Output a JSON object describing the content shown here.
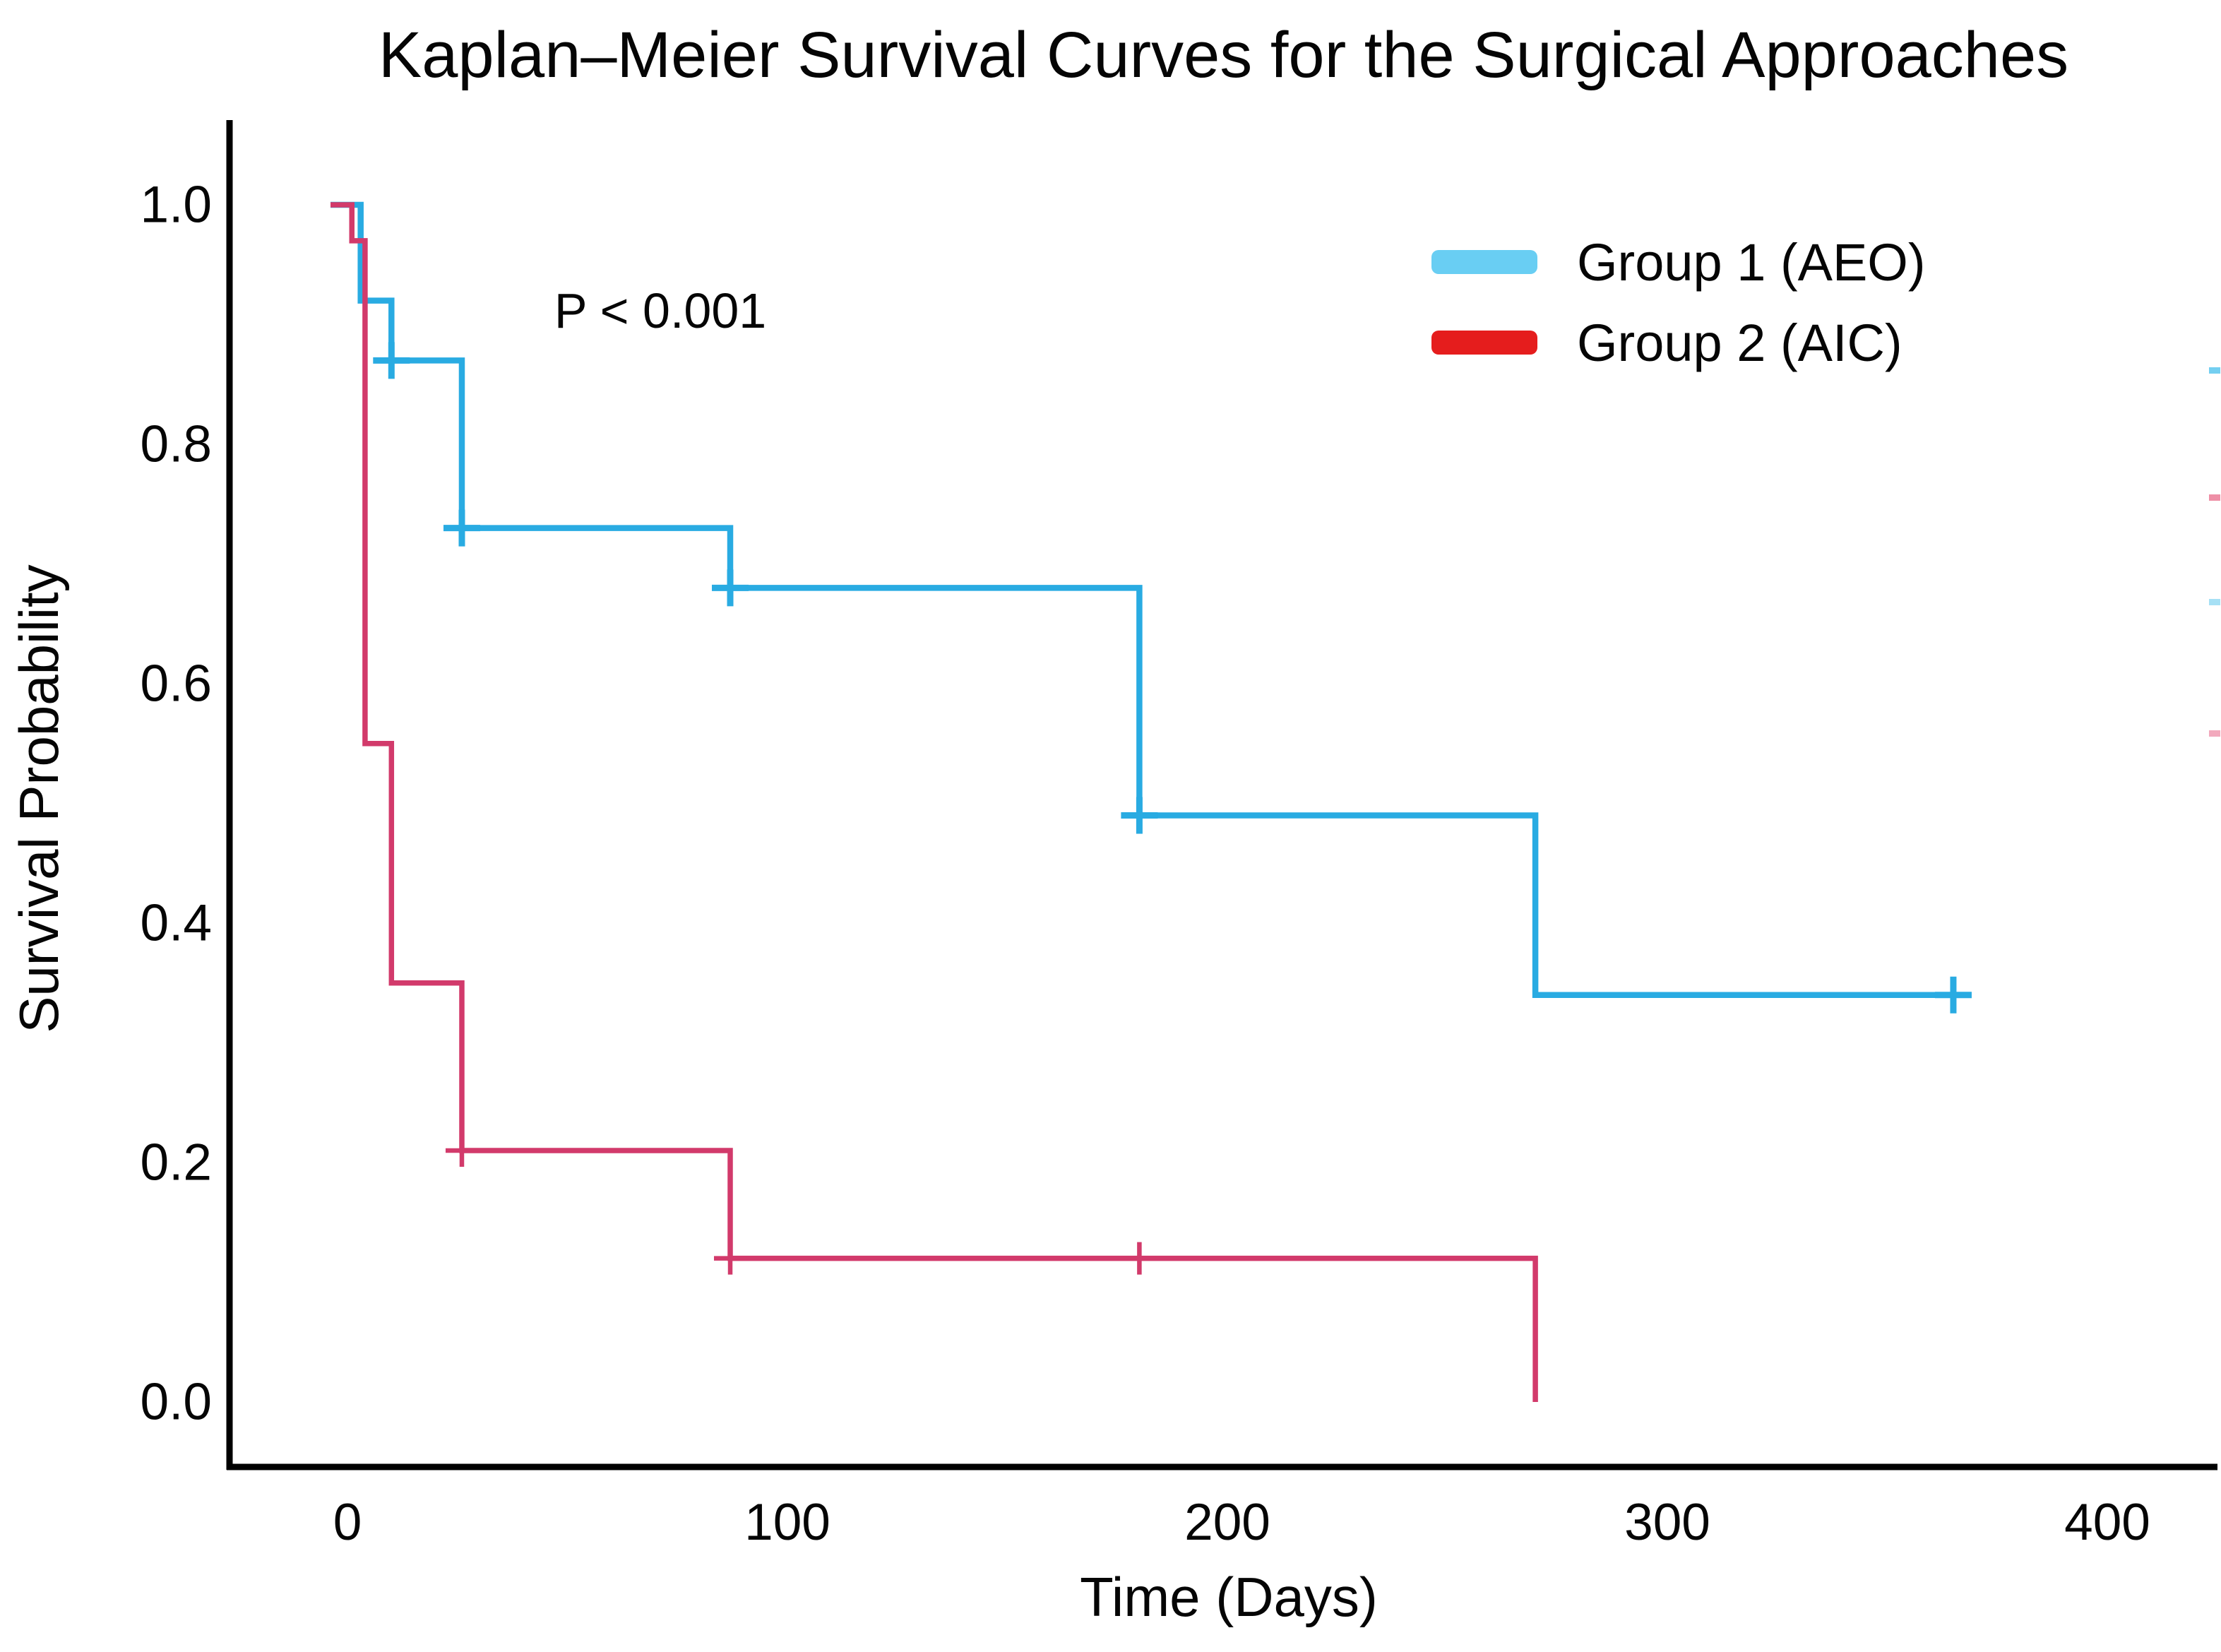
{
  "chart_data": {
    "type": "line",
    "subtype": "kaplan-meier-step-curves",
    "title": "Kaplan–Meier Survival Curves for the Surgical Approaches",
    "xlabel": "Time (Days)",
    "ylabel": "Survival Probability",
    "p_value_annotation": "P < 0.001",
    "grid": false,
    "legend_position": "upper-right-inside",
    "xlim": [
      -27,
      425
    ],
    "ylim": [
      0.0,
      1.05
    ],
    "x_ticks": [
      0,
      100,
      200,
      300,
      400
    ],
    "y_ticks": [
      "1.0",
      "0.8",
      "0.6",
      "0.4",
      "0.2",
      "0.0"
    ],
    "axis_color": "#000000",
    "series": [
      {
        "name": "Group 1 (AEO)",
        "curve_color": "#29ABE2",
        "legend_color": "#69CEF3",
        "steps": [
          [
            0,
            1.0
          ],
          [
            3,
            0.92
          ],
          [
            10,
            0.87
          ],
          [
            26,
            0.73
          ],
          [
            87,
            0.68
          ],
          [
            180,
            0.49
          ],
          [
            270,
            0.34
          ]
        ],
        "end_time": 365,
        "censor_marks": [
          [
            10,
            0.87
          ],
          [
            26,
            0.73
          ],
          [
            87,
            0.68
          ],
          [
            180,
            0.49
          ],
          [
            365,
            0.34
          ]
        ]
      },
      {
        "name": "Group 2 (AIC)",
        "curve_color": "#D23A6B",
        "legend_color": "#E51D1D",
        "steps": [
          [
            0,
            1.0
          ],
          [
            1,
            0.97
          ],
          [
            4,
            0.55
          ],
          [
            10,
            0.35
          ],
          [
            26,
            0.21
          ],
          [
            87,
            0.12
          ],
          [
            270,
            0.0
          ]
        ],
        "end_time": 270,
        "censor_marks": [
          [
            26,
            0.21
          ],
          [
            87,
            0.12
          ],
          [
            180,
            0.12
          ]
        ]
      }
    ],
    "edge_marks": [
      {
        "y": 520,
        "color": "#74CFF1"
      },
      {
        "y": 700,
        "color": "#EE8FA6"
      },
      {
        "y": 848,
        "color": "#A6E0F5"
      },
      {
        "y": 1034,
        "color": "#F2A9BD"
      }
    ]
  }
}
